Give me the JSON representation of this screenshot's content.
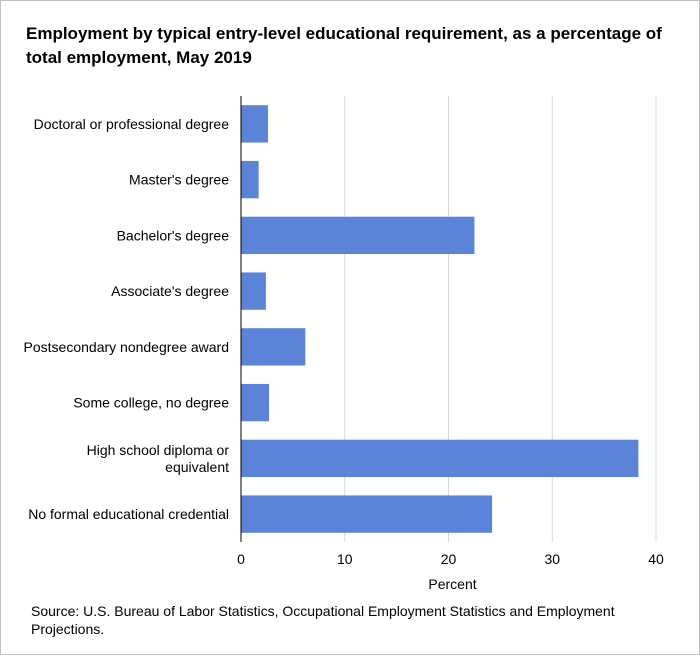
{
  "chart_data": {
    "type": "bar",
    "orientation": "horizontal",
    "title": "Employment by typical entry-level educational requirement, as a percentage of total employment, May 2019",
    "categories": [
      "Doctoral or professional degree",
      "Master's degree",
      "Bachelor's degree",
      "Associate's degree",
      "Postsecondary nondegree award",
      "Some college, no degree",
      "High school diploma or equivalent",
      "No formal educational credential"
    ],
    "category_display": [
      [
        "Doctoral or professional degree"
      ],
      [
        "Master's degree"
      ],
      [
        "Bachelor's degree"
      ],
      [
        "Associate's degree"
      ],
      [
        "Postsecondary nondegree award"
      ],
      [
        "Some college, no degree"
      ],
      [
        "High school diploma or",
        "equivalent"
      ],
      [
        "No formal educational credential"
      ]
    ],
    "values": [
      2.6,
      1.7,
      22.5,
      2.4,
      6.2,
      2.7,
      38.3,
      24.2
    ],
    "xlabel": "Percent",
    "ylabel": "",
    "xlim": [
      0,
      40
    ],
    "xticks": [
      0,
      10,
      20,
      30,
      40
    ],
    "grid": "vertical",
    "legend": "none",
    "bar_color": "#5b84d8",
    "grid_color": "#d9d9d9",
    "source": "Source: U.S. Bureau of Labor Statistics, Occupational Employment Statistics and Employment Projections."
  }
}
